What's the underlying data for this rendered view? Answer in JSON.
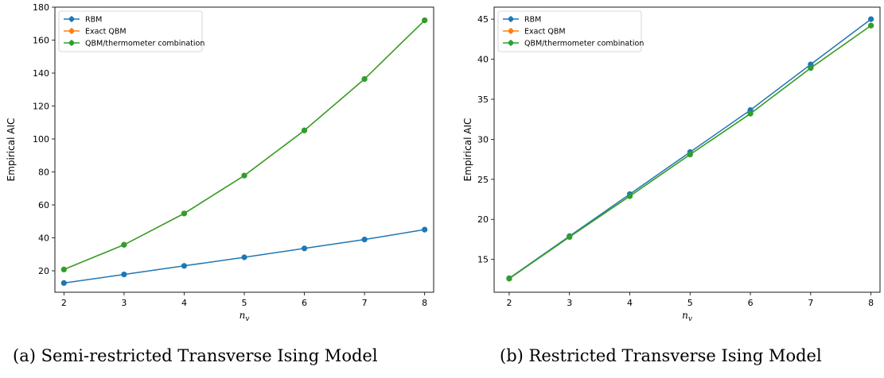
{
  "chart_data": [
    {
      "type": "line",
      "caption": "(a) Semi-restricted Transverse Ising Model",
      "xlabel": "n",
      "xlabel_sub": "v",
      "ylabel": "Empirical AIC",
      "x": [
        2,
        3,
        4,
        5,
        6,
        7,
        8
      ],
      "xlim": [
        1.85,
        8.15
      ],
      "ylim": [
        7,
        180
      ],
      "yticks": [
        20,
        40,
        60,
        80,
        100,
        120,
        140,
        160,
        180
      ],
      "legend": "top-left",
      "series": [
        {
          "name": "RBM",
          "color": "#1f77b4",
          "values": [
            12.6,
            17.8,
            23.0,
            28.2,
            33.6,
            39.0,
            45.0
          ]
        },
        {
          "name": "Exact QBM",
          "color": "#ff7f0e",
          "values": [
            20.8,
            35.8,
            54.8,
            77.8,
            105.2,
            136.4,
            172.0
          ]
        },
        {
          "name": "QBM/thermometer combination",
          "color": "#2ca02c",
          "values": [
            20.8,
            35.8,
            54.8,
            77.8,
            105.2,
            136.4,
            172.0
          ]
        }
      ]
    },
    {
      "type": "line",
      "caption": "(b) Restricted Transverse Ising Model",
      "xlabel": "n",
      "xlabel_sub": "v",
      "ylabel": "Empirical AIC",
      "x": [
        2,
        3,
        4,
        5,
        6,
        7,
        8
      ],
      "xlim": [
        1.75,
        8.15
      ],
      "ylim": [
        10.9,
        46.5
      ],
      "yticks": [
        15,
        20,
        25,
        30,
        35,
        40,
        45
      ],
      "legend": "top-left",
      "series": [
        {
          "name": "RBM",
          "color": "#1f77b4",
          "values": [
            12.65,
            17.9,
            23.15,
            28.4,
            33.65,
            39.35,
            45.0
          ]
        },
        {
          "name": "Exact QBM",
          "color": "#ff7f0e",
          "values": [
            12.6,
            17.8,
            22.9,
            28.1,
            33.2,
            38.9,
            44.2
          ]
        },
        {
          "name": "QBM/thermometer combination",
          "color": "#2ca02c",
          "values": [
            12.6,
            17.8,
            22.9,
            28.1,
            33.2,
            38.9,
            44.2
          ]
        }
      ]
    }
  ]
}
